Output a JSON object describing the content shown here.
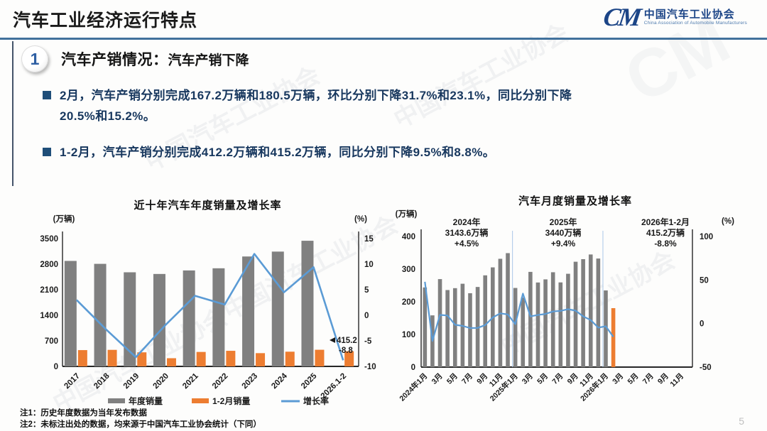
{
  "page": {
    "number": "5"
  },
  "watermark_text": "中国汽车工业协会",
  "header": {
    "title": "汽车工业经济运行特点",
    "logo": {
      "mark": "CM",
      "org_cn": "中国汽车工业协会",
      "org_en": "China Association of Automobile Manufacturers"
    }
  },
  "section": {
    "badge": "1",
    "heading": "汽车产销情况：",
    "subheading": "汽车产销下降"
  },
  "bullets": [
    "2月，汽车产销分别完成167.2万辆和180.5万辆，环比分别下降31.7%和23.1%，同比分别下降20.5%和15.2%。",
    "1-2月，汽车产销分别完成412.2万辆和415.2万辆，同比分别下降9.5%和8.8%。"
  ],
  "footnotes": [
    "注1：历史年度数据为当年发布数据",
    "注2：未标注出处的数据，均来源于中国汽车工业协会统计（下同）"
  ],
  "colors": {
    "rule_blue": "#41719C",
    "navy_text": "#17375E",
    "bar_gray": "#808080",
    "bar_orange": "#ED7D31",
    "line_blue": "#5B9BD5",
    "negative_red": "#E02020",
    "axis_black": "#262626",
    "separator_blue": "#A9C7E8"
  },
  "chart_data": [
    {
      "type": "bar",
      "subtype": "combo bar+line, dual axis",
      "title": "近十年汽车年度销量及增长率",
      "left_axis_label": "(万辆)",
      "right_axis_label": "(%)",
      "categories": [
        "2017",
        "2018",
        "2019",
        "2020",
        "2021",
        "2022",
        "2023",
        "2024",
        "2025",
        "2026.1-2"
      ],
      "series": [
        {
          "name": "年度销量",
          "type": "bar",
          "axis": "left",
          "color": "#808080",
          "values": [
            2887.9,
            2808.1,
            2576.9,
            2531.1,
            2627.5,
            2686.4,
            3009.4,
            3143.6,
            3440,
            null
          ]
        },
        {
          "name": "1-2月销量",
          "type": "bar",
          "axis": "left",
          "color": "#ED7D31",
          "values": [
            445.9,
            452.7,
            385.2,
            223.8,
            395.8,
            426.8,
            362.6,
            402.6,
            455.2,
            415.2
          ]
        },
        {
          "name": "增长率",
          "type": "line",
          "axis": "right",
          "color": "#5B9BD5",
          "values": [
            3.0,
            -2.8,
            -8.2,
            -1.9,
            3.8,
            2.1,
            12.0,
            4.5,
            9.4,
            -8.8
          ]
        }
      ],
      "left_axis": {
        "min": 0,
        "max": 3500,
        "ticks": [
          3500,
          2800,
          2100,
          1400,
          700,
          0
        ]
      },
      "right_axis": {
        "min": -10,
        "max": 15,
        "ticks": [
          15,
          10,
          5,
          0,
          -5,
          -10
        ]
      },
      "end_labels": [
        {
          "text": "415.2",
          "color": "#1a1a1a"
        },
        {
          "text": "-8.8",
          "color": "#E02020"
        }
      ],
      "legend_position": "bottom",
      "grid": false
    },
    {
      "type": "bar",
      "subtype": "combo bar+line, dual axis, monthly",
      "title": "汽车月度销量及增长率",
      "left_axis_label": "(万辆)",
      "right_axis_label": "(%)",
      "n_slots": 36,
      "x_tick_labels": [
        "2024年1月",
        "3月",
        "5月",
        "7月",
        "9月",
        "11月",
        "2025年1月",
        "3月",
        "5月",
        "7月",
        "9月",
        "11月",
        "2026年1月",
        "3月",
        "5月",
        "7月",
        "9月",
        "11月"
      ],
      "bars": {
        "name": "月度销量",
        "color": "#808080",
        "highlight_last_color": "#ED7D31",
        "values": [
          243.9,
          158.4,
          269.4,
          235.9,
          241.7,
          255.2,
          226.2,
          245.3,
          280.9,
          305.3,
          331.6,
          348.9,
          242.3,
          212.9,
          291.5,
          259.0,
          268.6,
          290.4,
          259.3,
          285.7,
          322.6,
          330.5,
          344.8,
          332.4,
          234.7,
          180.5
        ]
      },
      "line": {
        "name": "增长率",
        "color": "#5B9BD5",
        "values": [
          47.9,
          -19.9,
          9.9,
          9.3,
          -1.4,
          -2.7,
          -5.2,
          -5.0,
          -1.7,
          7.0,
          11.7,
          10.5,
          -0.7,
          34.4,
          8.2,
          9.8,
          11.1,
          13.8,
          14.6,
          16.5,
          14.8,
          8.3,
          4.0,
          -4.7,
          -3.1,
          -15.2
        ]
      },
      "left_axis": {
        "min": 0,
        "max": 400,
        "ticks": [
          400,
          300,
          200,
          100,
          0
        ]
      },
      "right_axis": {
        "min": -50,
        "max": 100,
        "ticks": [
          100,
          50,
          0,
          -50
        ]
      },
      "year_separator_slots": [
        12,
        24
      ],
      "annotations": [
        {
          "lines": [
            "2024年",
            "3143.6万辆",
            "+4.5%"
          ],
          "value_color": "#1a1a1a"
        },
        {
          "lines": [
            "2025年",
            "3440万辆",
            "+9.4%"
          ],
          "value_color": "#1a1a1a"
        },
        {
          "lines": [
            "2026年1-2月",
            "415.2万辆",
            "-8.8%"
          ],
          "value_color": "#E02020"
        }
      ],
      "grid": false
    }
  ]
}
